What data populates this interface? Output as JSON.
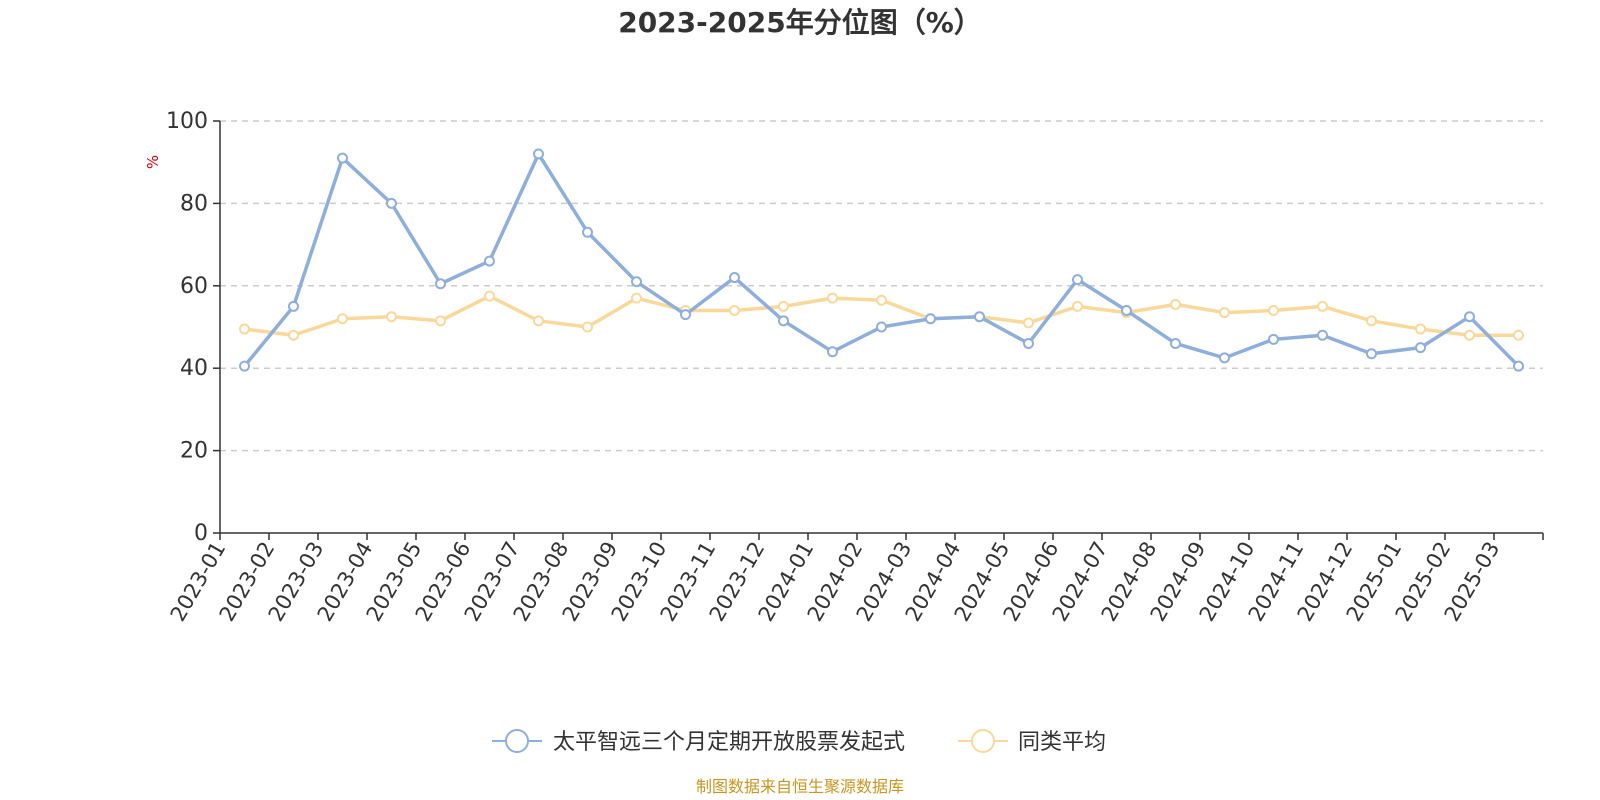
{
  "chart_data": {
    "type": "line",
    "title": "2023-2025年分位图（%）",
    "ylabel": "%",
    "xlabel": "",
    "ylim": [
      0,
      100
    ],
    "yticks": [
      0,
      20,
      40,
      60,
      80,
      100
    ],
    "grid": true,
    "legend_position": "bottom",
    "categories": [
      "2023-01",
      "2023-02",
      "2023-03",
      "2023-04",
      "2023-05",
      "2023-06",
      "2023-07",
      "2023-08",
      "2023-09",
      "2023-10",
      "2023-11",
      "2023-12",
      "2024-01",
      "2024-02",
      "2024-03",
      "2024-04",
      "2024-05",
      "2024-06",
      "2024-07",
      "2024-08",
      "2024-09",
      "2024-10",
      "2024-11",
      "2024-12",
      "2025-01",
      "2025-02",
      "2025-03"
    ],
    "series": [
      {
        "name": "太平智远三个月定期开放股票发起式",
        "color": "#8eaedb",
        "values": [
          40.5,
          55.0,
          91.0,
          80.0,
          60.5,
          66.0,
          92.0,
          73.0,
          61.0,
          53.0,
          62.0,
          51.5,
          44.0,
          50.0,
          52.0,
          52.5,
          46.0,
          61.5,
          54.0,
          46.0,
          42.5,
          47.0,
          48.0,
          43.5,
          45.0,
          52.5,
          40.5
        ]
      },
      {
        "name": "同类平均",
        "color": "#f9d899",
        "values": [
          49.5,
          48.0,
          52.0,
          52.5,
          51.5,
          57.5,
          51.5,
          50.0,
          57.0,
          54.0,
          54.0,
          55.0,
          57.0,
          56.5,
          52.0,
          52.5,
          51.0,
          55.0,
          53.5,
          55.5,
          53.5,
          54.0,
          55.0,
          51.5,
          49.5,
          48.0,
          48.0
        ]
      }
    ]
  },
  "source": "制图数据来自恒生聚源数据库"
}
